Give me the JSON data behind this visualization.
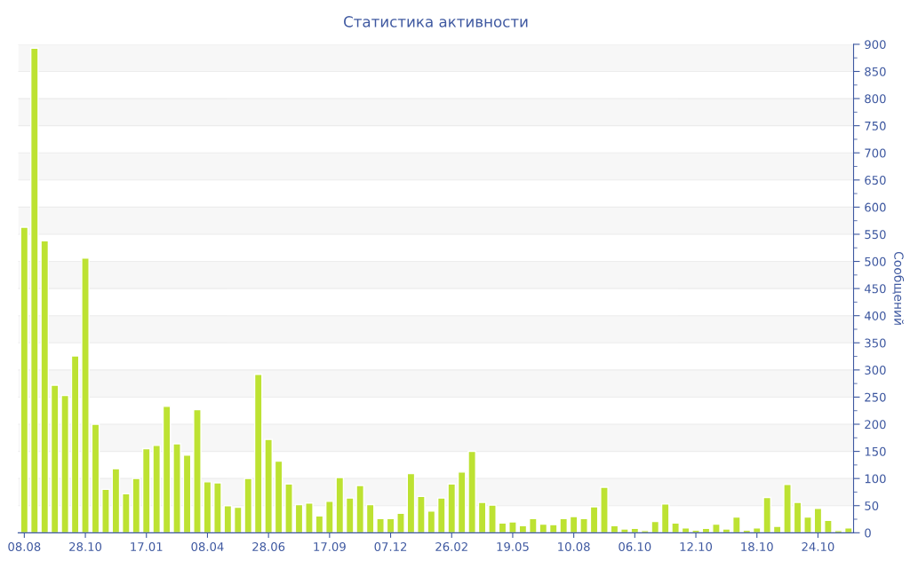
{
  "chart_data": {
    "type": "bar",
    "title": "Статистика активности",
    "ylabel": "Сообщений",
    "categories": [
      "08.08",
      null,
      null,
      null,
      null,
      null,
      "28.10",
      null,
      null,
      null,
      null,
      null,
      "17.01",
      null,
      null,
      null,
      null,
      null,
      "08.04",
      null,
      null,
      null,
      null,
      null,
      "28.06",
      null,
      null,
      null,
      null,
      null,
      "17.09",
      null,
      null,
      null,
      null,
      null,
      "07.12",
      null,
      null,
      null,
      null,
      null,
      "26.02",
      null,
      null,
      null,
      null,
      null,
      "19.05",
      null,
      null,
      null,
      null,
      null,
      "10.08",
      null,
      null,
      null,
      null,
      null,
      "06.10",
      null,
      null,
      null,
      null,
      null,
      "12.10",
      null,
      null,
      null,
      null,
      null,
      "18.10",
      null,
      null,
      null,
      null,
      null,
      "24.10",
      null,
      null,
      null
    ],
    "values": [
      563,
      893,
      538,
      272,
      253,
      326,
      506,
      200,
      80,
      118,
      72,
      100,
      155,
      161,
      233,
      164,
      143,
      227,
      94,
      92,
      50,
      47,
      100,
      292,
      172,
      132,
      90,
      52,
      55,
      31,
      58,
      102,
      64,
      87,
      52,
      26,
      26,
      36,
      109,
      67,
      40,
      64,
      90,
      112,
      150,
      56,
      51,
      18,
      20,
      13,
      26,
      16,
      15,
      26,
      30,
      26,
      48,
      84,
      13,
      7,
      8,
      4,
      21,
      53,
      18,
      9,
      5,
      8,
      16,
      7,
      29,
      5,
      9,
      65,
      12,
      89,
      56,
      29,
      45,
      23,
      4,
      9
    ],
    "color": "#bde232",
    "ylim": [
      0,
      900
    ],
    "yticks": [
      0,
      50,
      100,
      150,
      200,
      250,
      300,
      350,
      400,
      450,
      500,
      550,
      600,
      650,
      700,
      750,
      800,
      850,
      900
    ],
    "grid": "y"
  }
}
